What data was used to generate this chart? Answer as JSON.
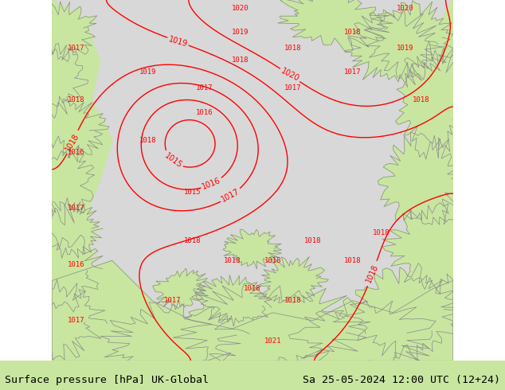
{
  "title_left": "Surface pressure [hPa] UK-Global",
  "title_right": "Sa 25-05-2024 12:00 UTC (12+24)",
  "bg_color": "#c8e6a0",
  "land_color": "#c8e6a0",
  "sea_color": "#d8d8d8",
  "contour_color": "red",
  "label_color": "red",
  "border_color": "#888888",
  "footer_bg": "#c8e6a0",
  "footer_text_color": "black",
  "figsize": [
    6.34,
    4.9
  ],
  "dpi": 100
}
